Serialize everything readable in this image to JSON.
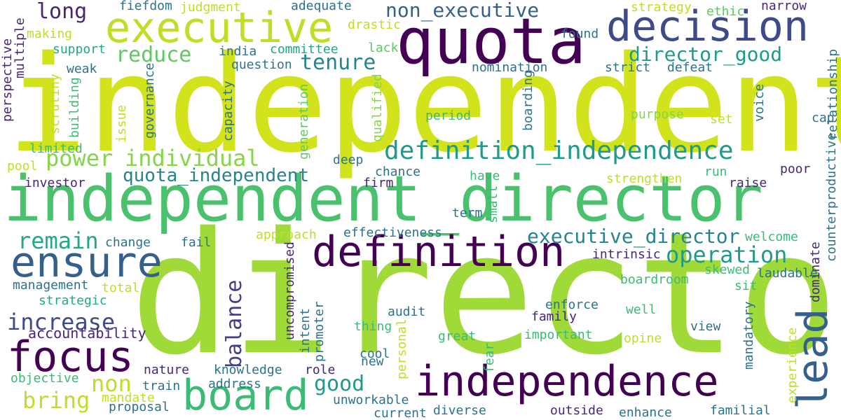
{
  "palette": {
    "lime": "#d2e21b",
    "yellow_green": "#bddf26",
    "light_green": "#a0da39",
    "green": "#86d549",
    "mid_green": "#5ec962",
    "sea_green": "#3bbb75",
    "teal_green": "#22a884",
    "teal": "#1e9b8a",
    "blue_teal": "#25858e",
    "steel_blue": "#2c728e",
    "slate_blue": "#355f8d",
    "indigo": "#3e4a89",
    "violet": "#472d7b",
    "dark_purple": "#440154"
  },
  "words": [
    {
      "text": "director",
      "color": "#a0da39"
    },
    {
      "text": "independent",
      "color": "#d2e21b"
    },
    {
      "text": "independent_director",
      "color": "#4ac16d"
    },
    {
      "text": "quota",
      "color": "#440154"
    },
    {
      "text": "decision",
      "color": "#3e4a89"
    },
    {
      "text": "executive",
      "color": "#bddf26"
    },
    {
      "text": "independence",
      "color": "#440154"
    },
    {
      "text": "board",
      "color": "#3bbb75"
    },
    {
      "text": "definition",
      "color": "#440154"
    },
    {
      "text": "ensure",
      "color": "#355f8d"
    },
    {
      "text": "focus",
      "color": "#440154"
    },
    {
      "text": "lead",
      "color": "#355f8d"
    },
    {
      "text": "definition_independence",
      "color": "#1e9b8a"
    },
    {
      "text": "non_executive",
      "color": "#355f8d"
    },
    {
      "text": "director_good",
      "color": "#1e9b8a"
    },
    {
      "text": "executive_director",
      "color": "#25858e"
    },
    {
      "text": "operation",
      "color": "#1e9b8a"
    },
    {
      "text": "increase",
      "color": "#3e4a89"
    },
    {
      "text": "remain",
      "color": "#22a884"
    },
    {
      "text": "power",
      "color": "#86d549"
    },
    {
      "text": "individual",
      "color": "#86d549"
    },
    {
      "text": "quota_independent",
      "color": "#25858e"
    },
    {
      "text": "reduce",
      "color": "#5ec962"
    },
    {
      "text": "tenure",
      "color": "#25858e"
    },
    {
      "text": "long",
      "color": "#482677"
    },
    {
      "text": "balance",
      "color": "#433e85"
    },
    {
      "text": "good",
      "color": "#1e9b8a"
    },
    {
      "text": "bring",
      "color": "#bddf26"
    },
    {
      "text": "non",
      "color": "#bddf26"
    },
    {
      "text": "accountability",
      "color": "#482677"
    },
    {
      "text": "fiefdom",
      "color": "#2c728e"
    },
    {
      "text": "judgment",
      "color": "#bddf26"
    },
    {
      "text": "adequate",
      "color": "#2c728e"
    },
    {
      "text": "strategy",
      "color": "#bddf26"
    },
    {
      "text": "ethic",
      "color": "#5ec962"
    },
    {
      "text": "narrow",
      "color": "#482677"
    },
    {
      "text": "drastic",
      "color": "#bddf26"
    },
    {
      "text": "multiple",
      "color": "#482677"
    },
    {
      "text": "making",
      "color": "#bddf26"
    },
    {
      "text": "perspective",
      "color": "#482677"
    },
    {
      "text": "support",
      "color": "#22a884"
    },
    {
      "text": "scrutiny",
      "color": "#bddf26"
    },
    {
      "text": "india",
      "color": "#2c728e"
    },
    {
      "text": "committee",
      "color": "#22a884"
    },
    {
      "text": "lack",
      "color": "#5ec962"
    },
    {
      "text": "found",
      "color": "#2c728e"
    },
    {
      "text": "weak",
      "color": "#2c728e"
    },
    {
      "text": "question",
      "color": "#2c728e"
    },
    {
      "text": "nomination",
      "color": "#2c728e"
    },
    {
      "text": "strict",
      "color": "#2c728e"
    },
    {
      "text": "defeat",
      "color": "#2c728e"
    },
    {
      "text": "building",
      "color": "#3bbb75"
    },
    {
      "text": "governance",
      "color": "#2c728e"
    },
    {
      "text": "capacity",
      "color": "#2c728e"
    },
    {
      "text": "qualified",
      "color": "#86d549"
    },
    {
      "text": "boarding",
      "color": "#2c728e"
    },
    {
      "text": "voice",
      "color": "#2c728e"
    },
    {
      "text": "relationship",
      "color": "#2c728e"
    },
    {
      "text": "period",
      "color": "#3bbb75"
    },
    {
      "text": "purpose",
      "color": "#86d549"
    },
    {
      "text": "set",
      "color": "#bddf26"
    },
    {
      "text": "cap",
      "color": "#2c728e"
    },
    {
      "text": "issue",
      "color": "#bddf26"
    },
    {
      "text": "generation",
      "color": "#5ec962"
    },
    {
      "text": "limited",
      "color": "#3bbb75"
    },
    {
      "text": "pool",
      "color": "#bddf26"
    },
    {
      "text": "deep",
      "color": "#2c728e"
    },
    {
      "text": "chance",
      "color": "#2c728e"
    },
    {
      "text": "firm",
      "color": "#482677"
    },
    {
      "text": "have",
      "color": "#3bbb75"
    },
    {
      "text": "strengthen",
      "color": "#bddf26"
    },
    {
      "text": "run",
      "color": "#3bbb75"
    },
    {
      "text": "raise",
      "color": "#482677"
    },
    {
      "text": "poor",
      "color": "#482677"
    },
    {
      "text": "counterproductive",
      "color": "#2c728e"
    },
    {
      "text": "investor",
      "color": "#482677"
    },
    {
      "text": "small",
      "color": "#3bbb75"
    },
    {
      "text": "term",
      "color": "#2c728e"
    },
    {
      "text": "approach",
      "color": "#bddf26"
    },
    {
      "text": "effectiveness",
      "color": "#2c728e"
    },
    {
      "text": "change",
      "color": "#2c728e"
    },
    {
      "text": "fail",
      "color": "#2c728e"
    },
    {
      "text": "welcome",
      "color": "#3bbb75"
    },
    {
      "text": "dominate",
      "color": "#482677"
    },
    {
      "text": "intrinsic",
      "color": "#482677"
    },
    {
      "text": "uncompromised",
      "color": "#482677"
    },
    {
      "text": "management",
      "color": "#2c728e"
    },
    {
      "text": "total",
      "color": "#bddf26"
    },
    {
      "text": "skewed",
      "color": "#3bbb75"
    },
    {
      "text": "laudable",
      "color": "#2c728e"
    },
    {
      "text": "boardroom",
      "color": "#3bbb75"
    },
    {
      "text": "sit",
      "color": "#3bbb75"
    },
    {
      "text": "strategic",
      "color": "#22a884"
    },
    {
      "text": "intent",
      "color": "#2c728e"
    },
    {
      "text": "promoter",
      "color": "#2c728e"
    },
    {
      "text": "audit",
      "color": "#2c728e"
    },
    {
      "text": "enforce",
      "color": "#2c728e"
    },
    {
      "text": "well",
      "color": "#3bbb75"
    },
    {
      "text": "family",
      "color": "#482677"
    },
    {
      "text": "mandatory",
      "color": "#2c728e"
    },
    {
      "text": "thing",
      "color": "#3bbb75"
    },
    {
      "text": "personal",
      "color": "#bddf26"
    },
    {
      "text": "great",
      "color": "#3bbb75"
    },
    {
      "text": "important",
      "color": "#3bbb75"
    },
    {
      "text": "view",
      "color": "#2c728e"
    },
    {
      "text": "opine",
      "color": "#bddf26"
    },
    {
      "text": "experience",
      "color": "#bddf26"
    },
    {
      "text": "fear",
      "color": "#3bbb75"
    },
    {
      "text": "cool",
      "color": "#2c728e"
    },
    {
      "text": "new",
      "color": "#2c728e"
    },
    {
      "text": "nature",
      "color": "#482677"
    },
    {
      "text": "knowledge",
      "color": "#2c728e"
    },
    {
      "text": "role",
      "color": "#482677"
    },
    {
      "text": "objective",
      "color": "#3bbb75"
    },
    {
      "text": "address",
      "color": "#2c728e"
    },
    {
      "text": "train",
      "color": "#2c728e"
    },
    {
      "text": "mandate",
      "color": "#bddf26"
    },
    {
      "text": "proposal",
      "color": "#2c728e"
    },
    {
      "text": "unworkable",
      "color": "#2c728e"
    },
    {
      "text": "current",
      "color": "#2c728e"
    },
    {
      "text": "diverse",
      "color": "#2c728e"
    },
    {
      "text": "outside",
      "color": "#482677"
    },
    {
      "text": "enhance",
      "color": "#2c728e"
    },
    {
      "text": "familial",
      "color": "#2c728e"
    }
  ]
}
